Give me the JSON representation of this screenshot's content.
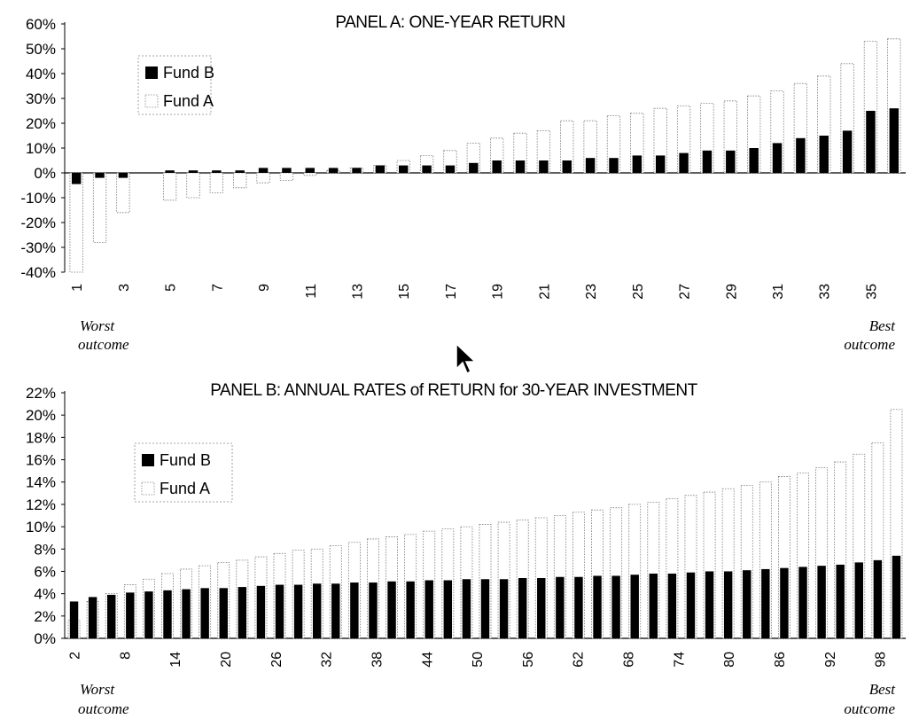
{
  "chart_data": [
    {
      "type": "bar",
      "title": "PANEL A:  ONE-YEAR RETURN",
      "y_ticks": [
        "60%",
        "50%",
        "40%",
        "30%",
        "20%",
        "10%",
        "0%",
        "-10%",
        "-20%",
        "-30%",
        "-40%"
      ],
      "ylim": [
        -40,
        60
      ],
      "x_ticks": [
        "1",
        "3",
        "5",
        "7",
        "9",
        "11",
        "13",
        "15",
        "17",
        "19",
        "21",
        "23",
        "25",
        "27",
        "29",
        "31",
        "33",
        "35"
      ],
      "x": [
        1,
        2,
        3,
        4,
        5,
        6,
        7,
        8,
        9,
        10,
        11,
        12,
        13,
        14,
        15,
        16,
        17,
        18,
        19,
        20,
        21,
        22,
        23,
        24,
        25,
        26,
        27,
        28,
        29,
        30,
        31,
        32,
        33,
        34,
        35,
        36
      ],
      "legend": "top-left",
      "series": [
        {
          "name": "Fund B",
          "color": "#000000",
          "values": [
            -4.5,
            -2,
            -2,
            0,
            1,
            1,
            1,
            1,
            2,
            2,
            2,
            2,
            2,
            3,
            3,
            3,
            3,
            4,
            5,
            5,
            5,
            5,
            6,
            6,
            7,
            7,
            8,
            9,
            9,
            10,
            12,
            14,
            15,
            17,
            25,
            26
          ]
        },
        {
          "name": "Fund A",
          "color": "#ffffff",
          "values": [
            -40,
            -28,
            -16,
            0,
            -11,
            -10,
            -8,
            -6,
            -4,
            -3,
            -1,
            1,
            2,
            3,
            5,
            7,
            9,
            12,
            14,
            16,
            17,
            21,
            21,
            23,
            24,
            26,
            27,
            28,
            29,
            31,
            33,
            36,
            39,
            44,
            53,
            54
          ]
        }
      ],
      "annotations": [
        {
          "text": "Worst\noutcome",
          "position": "bottom-left"
        },
        {
          "text": "Best\noutcome",
          "position": "bottom-right"
        }
      ]
    },
    {
      "type": "bar",
      "title": "PANEL B:  ANNUAL RATES of RETURN for 30-YEAR INVESTMENT",
      "y_ticks": [
        "22%",
        "20%",
        "18%",
        "16%",
        "14%",
        "12%",
        "10%",
        "8%",
        "6%",
        "4%",
        "2%",
        "0%"
      ],
      "ylim": [
        0,
        22
      ],
      "x_ticks": [
        "2",
        "8",
        "14",
        "20",
        "26",
        "32",
        "38",
        "44",
        "50",
        "56",
        "62",
        "68",
        "74",
        "80",
        "86",
        "92",
        "98"
      ],
      "x_range": [
        2,
        100
      ],
      "legend": "top-left",
      "series": [
        {
          "name": "Fund B",
          "color": "#000000",
          "values": [
            3.3,
            3.7,
            3.9,
            4.1,
            4.2,
            4.3,
            4.4,
            4.5,
            4.5,
            4.6,
            4.7,
            4.8,
            4.8,
            4.9,
            4.9,
            5.0,
            5.0,
            5.1,
            5.1,
            5.2,
            5.2,
            5.3,
            5.3,
            5.3,
            5.4,
            5.4,
            5.5,
            5.5,
            5.6,
            5.6,
            5.7,
            5.8,
            5.8,
            5.9,
            6.0,
            6.0,
            6.1,
            6.2,
            6.3,
            6.4,
            6.5,
            6.6,
            6.8,
            7.0,
            7.4
          ]
        },
        {
          "name": "Fund A",
          "color": "#ffffff",
          "values": [
            1.6,
            3.3,
            4.0,
            4.8,
            5.3,
            5.8,
            6.2,
            6.5,
            6.8,
            7.0,
            7.3,
            7.6,
            7.9,
            8.0,
            8.3,
            8.6,
            8.9,
            9.1,
            9.3,
            9.6,
            9.8,
            10.0,
            10.2,
            10.4,
            10.6,
            10.8,
            11.0,
            11.3,
            11.5,
            11.7,
            12.0,
            12.2,
            12.5,
            12.8,
            13.1,
            13.4,
            13.7,
            14.0,
            14.5,
            14.8,
            15.3,
            15.8,
            16.5,
            17.5,
            20.5
          ]
        }
      ],
      "annotations": [
        {
          "text": "Worst\noutcome",
          "position": "bottom-left"
        },
        {
          "text": "Best\noutcome",
          "position": "bottom-right"
        }
      ]
    }
  ],
  "cursor_icon": "arrow-cursor-icon"
}
